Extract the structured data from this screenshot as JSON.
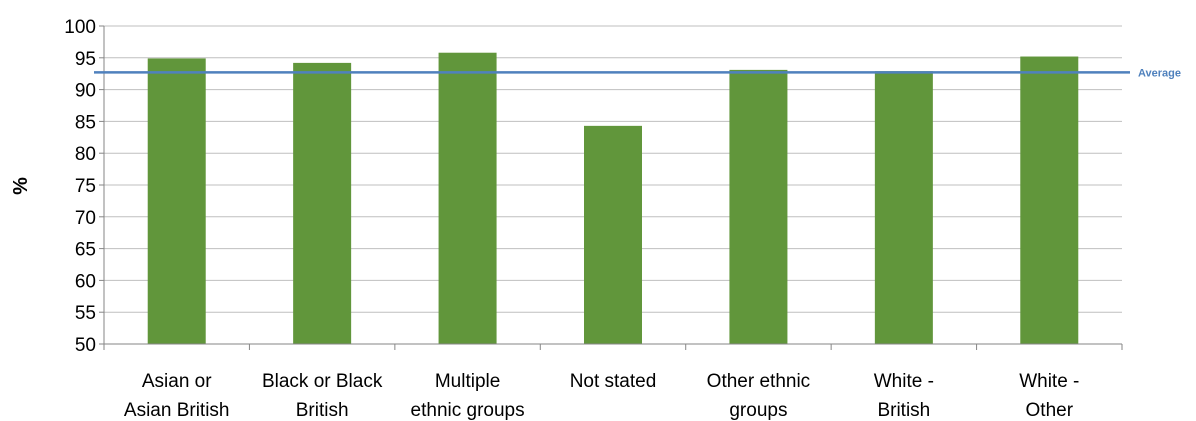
{
  "chart_data": {
    "type": "bar",
    "title": "",
    "xlabel": "",
    "ylabel": "%",
    "ylim": [
      50,
      100
    ],
    "yticks": [
      50,
      55,
      60,
      65,
      70,
      75,
      80,
      85,
      90,
      95,
      100
    ],
    "grid": true,
    "categories": [
      [
        "Asian or",
        "Asian British"
      ],
      [
        "Black or Black",
        "British"
      ],
      [
        "Multiple",
        "ethnic groups"
      ],
      [
        "Not stated"
      ],
      [
        "Other ethnic",
        "groups"
      ],
      [
        "White -",
        "British"
      ],
      [
        "White -",
        "Other"
      ]
    ],
    "values": [
      94.9,
      94.2,
      95.8,
      84.3,
      93.1,
      92.9,
      95.2
    ],
    "reference_line": {
      "label": "Average",
      "value": 92.7
    },
    "colors": {
      "bar": "#61963b",
      "average": "#4f81bd",
      "grid": "#bfbfbf",
      "axis": "#868686"
    }
  }
}
